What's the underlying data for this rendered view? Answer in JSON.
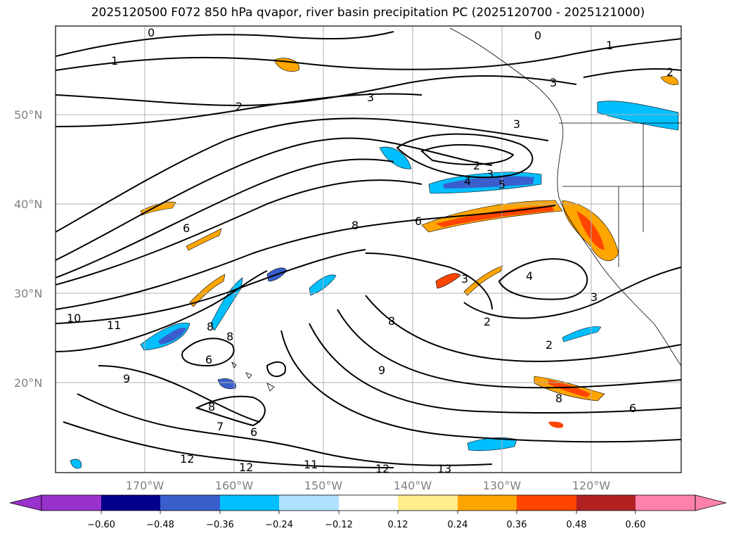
{
  "title": "2025120500 F072 850 hPa qvapor, river basin precipitation PC (2025120700 - 2025121000)",
  "map": {
    "lat_labels": [
      "50°N",
      "40°N",
      "30°N",
      "20°N"
    ],
    "lon_labels": [
      "170°W",
      "160°W",
      "150°W",
      "140°W",
      "130°W",
      "120°W"
    ],
    "contour_labels": [
      "0",
      "1",
      "2",
      "3",
      "3",
      "2",
      "3",
      "4",
      "5",
      "8",
      "6",
      "4",
      "3",
      "3",
      "2",
      "2",
      "10",
      "11",
      "8",
      "6",
      "8",
      "9",
      "8",
      "6",
      "8",
      "7",
      "6",
      "12",
      "12",
      "11",
      "12",
      "13",
      "9",
      "8",
      "6",
      "3",
      "1",
      "2",
      "0"
    ]
  },
  "colorbar": {
    "colors": [
      "#9932cc",
      "#00008b",
      "#3a5fcd",
      "#00bfff",
      "#b0e2ff",
      "#ffffff",
      "#ffec8b",
      "#ffa500",
      "#ff4500",
      "#b22222",
      "#ff82ab"
    ],
    "tick_labels": [
      "−0.60",
      "−0.48",
      "−0.36",
      "−0.24",
      "−0.12",
      "0.12",
      "0.24",
      "0.36",
      "0.48",
      "0.60"
    ]
  }
}
